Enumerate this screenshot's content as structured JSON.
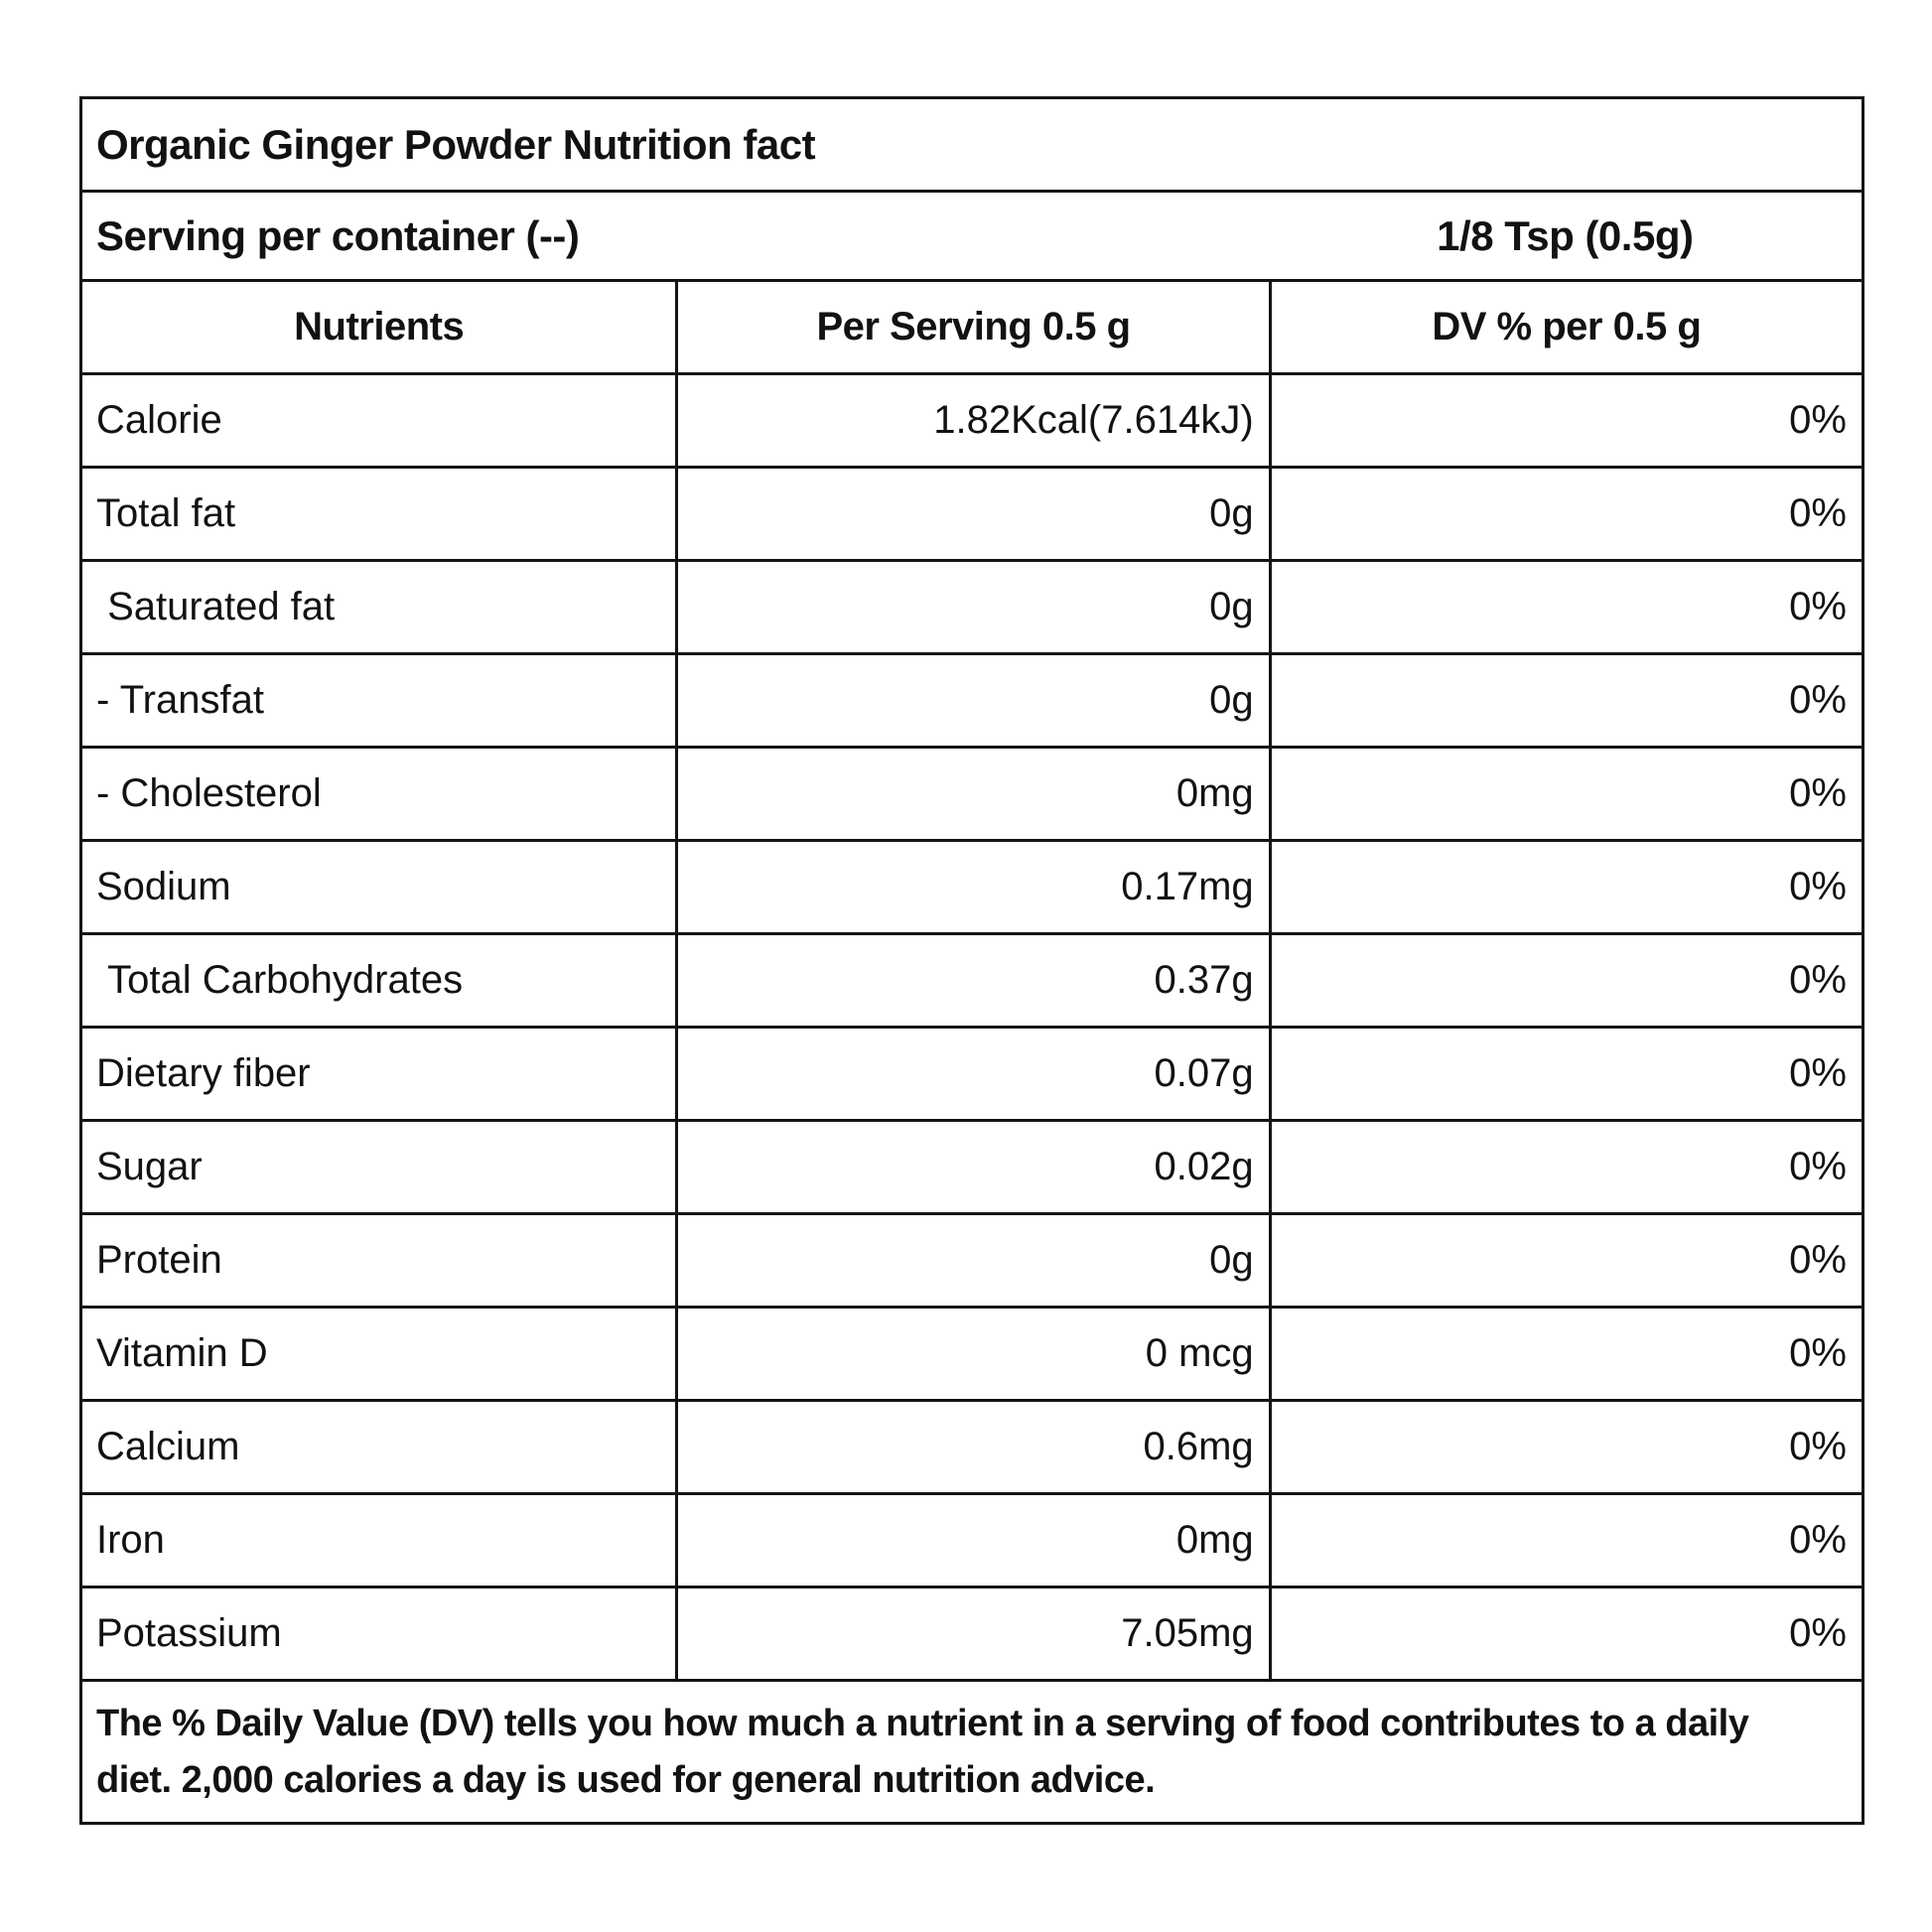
{
  "title": "Organic Ginger Powder Nutrition fact",
  "serving": {
    "label": "Serving per container (--)",
    "size": "1/8 Tsp (0.5g)"
  },
  "columns": {
    "nutrient": "Nutrients",
    "per_serving": "Per Serving 0.5 g",
    "dv": "DV % per 0.5 g"
  },
  "rows": [
    {
      "label": "Calorie",
      "value": "1.82Kcal(7.614kJ)",
      "dv": "0%"
    },
    {
      "label": "Total fat",
      "value": "0g",
      "dv": "0%"
    },
    {
      "label": " Saturated fat",
      "value": "0g",
      "dv": "0%"
    },
    {
      "label": "- Transfat",
      "value": "0g",
      "dv": "0%"
    },
    {
      "label": "- Cholesterol",
      "value": "0mg",
      "dv": "0%"
    },
    {
      "label": "Sodium",
      "value": "0.17mg",
      "dv": "0%"
    },
    {
      "label": " Total Carbohydrates",
      "value": "0.37g",
      "dv": "0%"
    },
    {
      "label": "Dietary fiber",
      "value": "0.07g",
      "dv": "0%"
    },
    {
      "label": "Sugar",
      "value": "0.02g",
      "dv": "0%"
    },
    {
      "label": "Protein",
      "value": "0g",
      "dv": "0%"
    },
    {
      "label": "Vitamin D",
      "value": "0 mcg",
      "dv": "0%"
    },
    {
      "label": "Calcium",
      "value": "0.6mg",
      "dv": "0%"
    },
    {
      "label": "Iron",
      "value": "0mg",
      "dv": "0%"
    },
    {
      "label": "Potassium",
      "value": "7.05mg",
      "dv": "0%"
    }
  ],
  "footer": "The % Daily Value (DV) tells you how much a nutrient in a serving of food contributes to a daily diet. 2,000 calories a day is used for general nutrition advice.",
  "colors": {
    "text": "#121212",
    "border": "#141414",
    "background": "#ffffff"
  }
}
